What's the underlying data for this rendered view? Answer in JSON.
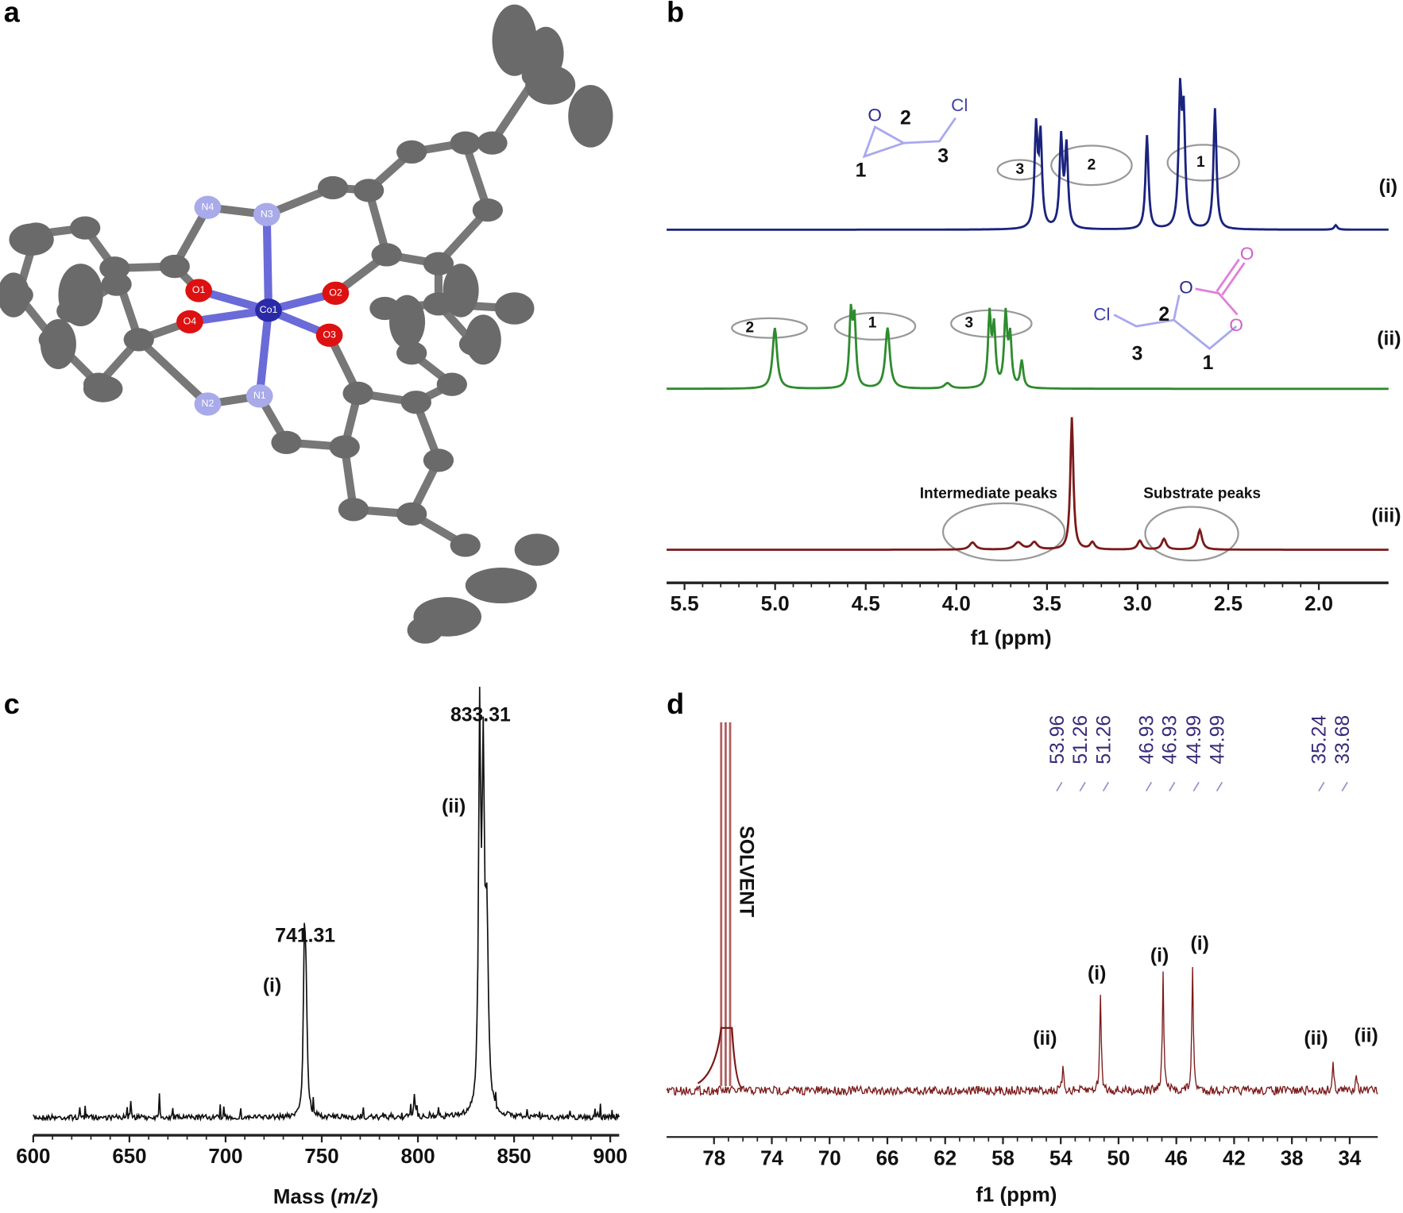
{
  "figure": {
    "a": {
      "label": "a",
      "atoms": [
        "N4",
        "N3",
        "N2",
        "N1",
        "O1",
        "O4",
        "O2",
        "O3",
        "Co1"
      ]
    },
    "b": {
      "label": "b",
      "xticks": [
        "5.5",
        "5.0",
        "4.5",
        "4.0",
        "3.5",
        "3.0",
        "2.5",
        "2.0"
      ],
      "xlabel": "f1 (ppm)",
      "traces": [
        "(i)",
        "(ii)",
        "(iii)"
      ],
      "epoxide": {
        "o": "O",
        "cl": "Cl",
        "n1": "1",
        "n2": "2",
        "n3": "3"
      },
      "carbonate": {
        "o_ring": "O",
        "o_ring2": "O",
        "o_carbonyl": "O",
        "cl": "Cl",
        "n1": "1",
        "n2": "2",
        "n3": "3"
      },
      "groups_i": [
        "3",
        "2",
        "1"
      ],
      "groups_ii": [
        "2",
        "1",
        "3"
      ],
      "annotations": [
        "Intermediate peaks",
        "Substrate peaks"
      ]
    },
    "c": {
      "label": "c",
      "xticks": [
        "600",
        "650",
        "700",
        "750",
        "800",
        "850",
        "900"
      ],
      "xlabel": {
        "pre": "Mass (",
        "italic": "m/z",
        "post": ")"
      },
      "peaks": [
        {
          "mass": "741.31",
          "tag": "(i)"
        },
        {
          "mass": "833.31",
          "tag": "(ii)"
        }
      ]
    },
    "d": {
      "label": "d",
      "xticks": [
        "78",
        "74",
        "70",
        "66",
        "62",
        "58",
        "54",
        "50",
        "46",
        "42",
        "38",
        "34"
      ],
      "xlabel": "f1 (ppm)",
      "shifts": [
        "53.96",
        "51.26",
        "51.26",
        "46.93",
        "46.93",
        "44.99",
        "44.99",
        "35.24",
        "33.68"
      ],
      "solvent": "SOLVENT",
      "tags": [
        "(ii)",
        "(i)",
        "(i)",
        "(i)",
        "(ii)",
        "(ii)"
      ]
    }
  }
}
